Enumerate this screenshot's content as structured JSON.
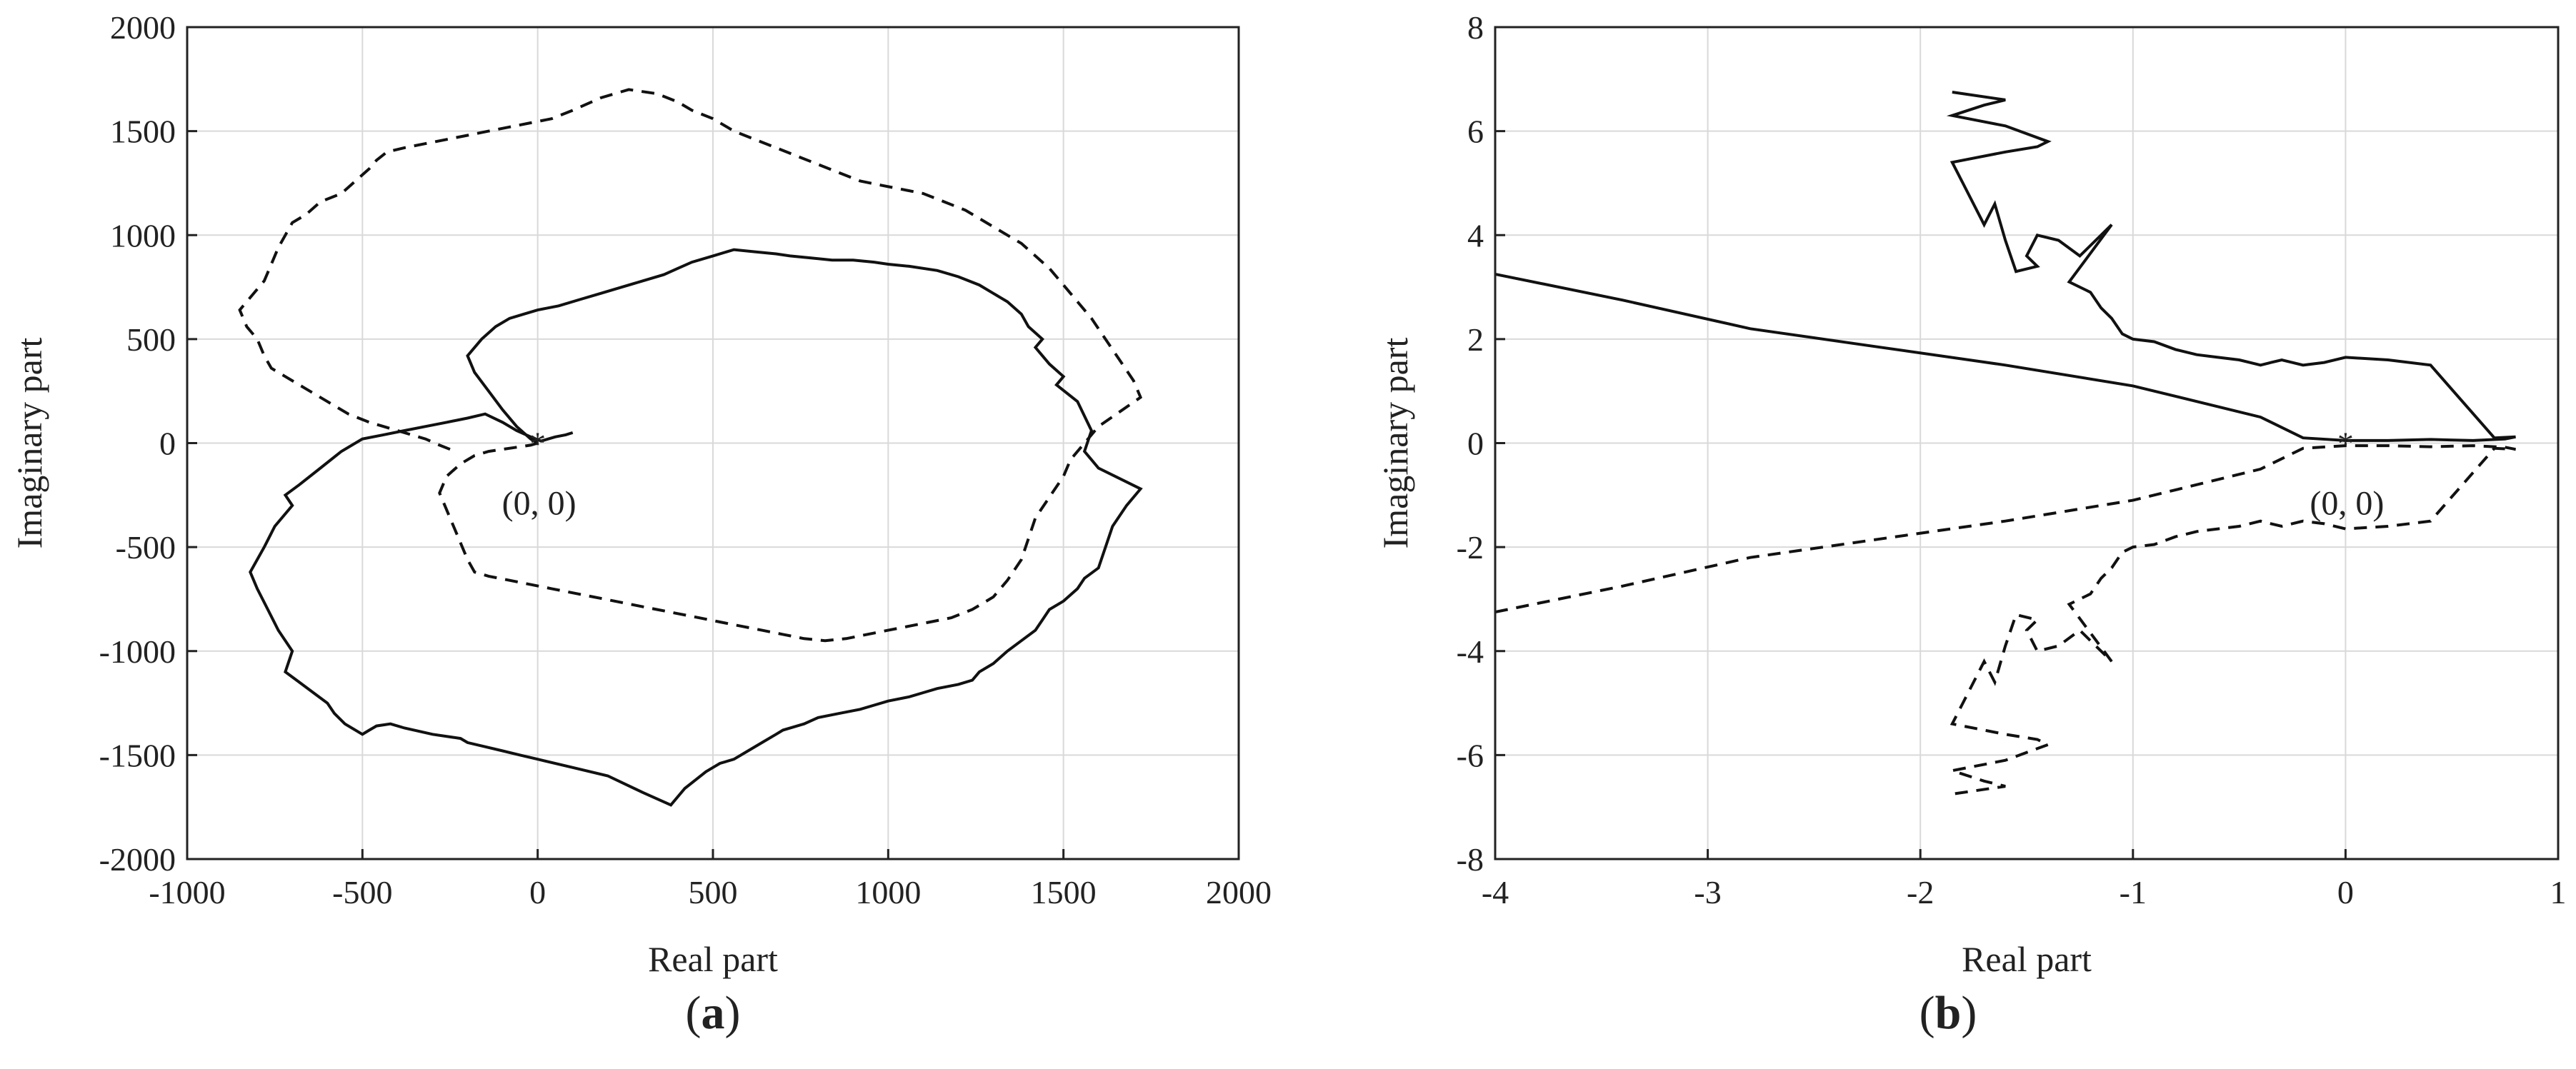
{
  "chart_data": [
    {
      "type": "line",
      "panel_label": "a",
      "xlabel": "Real part",
      "ylabel": "Imaginary part",
      "xlim": [
        -1000,
        2000
      ],
      "ylim": [
        -2000,
        2000
      ],
      "xticks": [
        -1000,
        -500,
        0,
        500,
        1000,
        1500,
        2000
      ],
      "yticks": [
        -2000,
        -1500,
        -1000,
        -500,
        0,
        500,
        1000,
        1500,
        2000
      ],
      "grid": true,
      "annotation": {
        "text": "(0, 0)",
        "x": 0,
        "y": 0
      },
      "series": [
        {
          "style": "solid",
          "x": [
            100,
            80,
            50,
            30,
            10,
            -20,
            -60,
            -100,
            -150,
            -200,
            -260,
            -320,
            -380,
            -440,
            -500,
            -560,
            -620,
            -680,
            -720,
            -700,
            -750,
            -780,
            -820,
            -800,
            -770,
            -740,
            -700,
            -720,
            -680,
            -640,
            -600,
            -580,
            -550,
            -500,
            -480,
            -460,
            -420,
            -380,
            -300,
            -220,
            -200,
            -150,
            -100,
            -50,
            0,
            100,
            200,
            300,
            380,
            400,
            420,
            450,
            480,
            500,
            520,
            560,
            600,
            640,
            680,
            700,
            760,
            800,
            860,
            920,
            960,
            1000,
            1060,
            1100,
            1140,
            1200,
            1240,
            1260,
            1300,
            1340,
            1380,
            1420,
            1440,
            1460,
            1500,
            1540,
            1560,
            1600,
            1640,
            1680,
            1720,
            1600,
            1560,
            1580,
            1540,
            1480,
            1500,
            1460,
            1440,
            1420,
            1440,
            1400,
            1380,
            1340,
            1300,
            1260,
            1200,
            1140,
            1060,
            1000,
            960,
            900,
            840,
            780,
            720,
            680,
            620,
            560,
            500,
            440,
            400,
            360,
            300,
            240,
            180,
            120,
            60,
            0,
            -40,
            -80,
            -120,
            -160,
            -200,
            -180,
            -140,
            -100,
            -60,
            -20,
            0
          ],
          "y": [
            50,
            40,
            30,
            20,
            10,
            30,
            60,
            100,
            140,
            120,
            100,
            80,
            60,
            40,
            20,
            -40,
            -120,
            -200,
            -250,
            -300,
            -400,
            -500,
            -620,
            -700,
            -800,
            -900,
            -1000,
            -1100,
            -1150,
            -1200,
            -1250,
            -1300,
            -1350,
            -1400,
            -1380,
            -1360,
            -1350,
            -1370,
            -1400,
            -1420,
            -1440,
            -1460,
            -1480,
            -1500,
            -1520,
            -1560,
            -1600,
            -1680,
            -1740,
            -1700,
            -1660,
            -1620,
            -1580,
            -1560,
            -1540,
            -1520,
            -1480,
            -1440,
            -1400,
            -1380,
            -1350,
            -1320,
            -1300,
            -1280,
            -1260,
            -1240,
            -1220,
            -1200,
            -1180,
            -1160,
            -1140,
            -1100,
            -1060,
            -1000,
            -950,
            -900,
            -850,
            -800,
            -760,
            -700,
            -650,
            -600,
            -400,
            -300,
            -220,
            -120,
            -40,
            60,
            200,
            280,
            320,
            380,
            420,
            460,
            500,
            560,
            620,
            680,
            720,
            760,
            800,
            830,
            850,
            860,
            870,
            880,
            880,
            890,
            900,
            910,
            920,
            930,
            900,
            870,
            840,
            810,
            780,
            750,
            720,
            690,
            660,
            640,
            620,
            600,
            560,
            500,
            420,
            340,
            250,
            160,
            80,
            20,
            0
          ]
        },
        {
          "style": "dashed",
          "x": [
            -250,
            -280,
            -320,
            -360,
            -400,
            -440,
            -480,
            -540,
            -600,
            -660,
            -720,
            -760,
            -780,
            -800,
            -830,
            -850,
            -820,
            -780,
            -760,
            -740,
            -720,
            -700,
            -660,
            -620,
            -560,
            -520,
            -480,
            -460,
            -430,
            -380,
            -320,
            -260,
            -200,
            -140,
            -80,
            -20,
            40,
            100,
            180,
            260,
            340,
            400,
            440,
            500,
            560,
            620,
            680,
            740,
            800,
            860,
            920,
            980,
            1040,
            1100,
            1160,
            1220,
            1260,
            1300,
            1340,
            1380,
            1420,
            1460,
            1500,
            1540,
            1580,
            1620,
            1660,
            1700,
            1720,
            1660,
            1600,
            1560,
            1520,
            1500,
            1460,
            1420,
            1400,
            1380,
            1340,
            1300,
            1240,
            1180,
            1120,
            1060,
            1000,
            940,
            880,
            820,
            760,
            700,
            640,
            580,
            520,
            460,
            400,
            340,
            280,
            220,
            160,
            100,
            40,
            -20,
            -80,
            -140,
            -180,
            -200,
            -220,
            -240,
            -260,
            -280,
            -260,
            -220,
            -180,
            -140,
            -100,
            -60,
            -20,
            0
          ],
          "y": [
            -30,
            -10,
            20,
            40,
            60,
            80,
            100,
            140,
            200,
            260,
            320,
            360,
            420,
            500,
            560,
            640,
            700,
            780,
            860,
            940,
            1000,
            1060,
            1100,
            1160,
            1200,
            1260,
            1320,
            1360,
            1400,
            1420,
            1440,
            1460,
            1480,
            1500,
            1520,
            1540,
            1560,
            1600,
            1660,
            1700,
            1680,
            1640,
            1600,
            1560,
            1500,
            1460,
            1420,
            1380,
            1340,
            1300,
            1260,
            1240,
            1220,
            1200,
            1160,
            1120,
            1080,
            1040,
            1000,
            960,
            900,
            840,
            760,
            680,
            600,
            500,
            400,
            300,
            220,
            150,
            80,
            0,
            -80,
            -160,
            -260,
            -360,
            -460,
            -560,
            -660,
            -740,
            -800,
            -840,
            -860,
            -880,
            -900,
            -920,
            -940,
            -950,
            -940,
            -920,
            -900,
            -880,
            -860,
            -840,
            -820,
            -800,
            -780,
            -760,
            -740,
            -720,
            -700,
            -680,
            -660,
            -640,
            -620,
            -560,
            -480,
            -400,
            -320,
            -240,
            -160,
            -100,
            -60,
            -40,
            -30,
            -20,
            -10,
            0
          ]
        }
      ]
    },
    {
      "type": "line",
      "panel_label": "b",
      "xlabel": "Real part",
      "ylabel": "Imaginary part",
      "xlim": [
        -4,
        1
      ],
      "ylim": [
        -8,
        8
      ],
      "xticks": [
        -4,
        -3,
        -2,
        -1,
        0,
        1
      ],
      "yticks": [
        -8,
        -6,
        -4,
        -2,
        0,
        2,
        4,
        6,
        8
      ],
      "grid": true,
      "annotation": {
        "text": "(0, 0)",
        "x": 0,
        "y": 0
      },
      "series": [
        {
          "style": "solid",
          "x": [
            -4,
            -3.4,
            -2.8,
            -2.2,
            -1.6,
            -1.0,
            -0.4,
            -0.2,
            0.0,
            0.2,
            0.4,
            0.6,
            0.75,
            0.8,
            0.7,
            0.4,
            0.2,
            0.0,
            -0.1,
            -0.2,
            -0.3,
            -0.35,
            -0.4,
            -0.5,
            -0.6,
            -0.7,
            -0.8,
            -0.9,
            -1.0,
            -1.05,
            -1.1,
            -1.15,
            -1.2,
            -1.3,
            -1.1,
            -1.25,
            -1.35,
            -1.45,
            -1.5,
            -1.45,
            -1.55,
            -1.6,
            -1.65,
            -1.7,
            -1.8,
            -1.85,
            -1.6,
            -1.45,
            -1.4,
            -1.6,
            -1.85,
            -1.7,
            -1.6,
            -1.85
          ],
          "y": [
            3.25,
            2.75,
            2.2,
            1.85,
            1.5,
            1.1,
            0.5,
            0.1,
            0.05,
            0.05,
            0.07,
            0.05,
            0.08,
            0.12,
            0.1,
            1.5,
            1.6,
            1.65,
            1.55,
            1.5,
            1.6,
            1.55,
            1.5,
            1.6,
            1.65,
            1.7,
            1.8,
            1.95,
            2.0,
            2.1,
            2.4,
            2.6,
            2.9,
            3.1,
            4.2,
            3.6,
            3.9,
            4.0,
            3.6,
            3.4,
            3.3,
            3.9,
            4.6,
            4.2,
            5.0,
            5.4,
            5.6,
            5.7,
            5.8,
            6.1,
            6.3,
            6.5,
            6.6,
            6.75
          ]
        },
        {
          "style": "dashed",
          "x": [
            -4,
            -3.4,
            -2.8,
            -2.2,
            -1.6,
            -1.0,
            -0.4,
            -0.2,
            0.0,
            0.2,
            0.4,
            0.6,
            0.75,
            0.8,
            0.7,
            0.4,
            0.2,
            0.0,
            -0.1,
            -0.2,
            -0.3,
            -0.35,
            -0.4,
            -0.5,
            -0.6,
            -0.7,
            -0.8,
            -0.9,
            -1.0,
            -1.05,
            -1.1,
            -1.15,
            -1.2,
            -1.3,
            -1.1,
            -1.25,
            -1.35,
            -1.45,
            -1.5,
            -1.45,
            -1.55,
            -1.6,
            -1.65,
            -1.7,
            -1.8,
            -1.85,
            -1.6,
            -1.45,
            -1.4,
            -1.6,
            -1.85,
            -1.7,
            -1.6,
            -1.85
          ],
          "y": [
            -3.25,
            -2.75,
            -2.2,
            -1.85,
            -1.5,
            -1.1,
            -0.5,
            -0.1,
            -0.05,
            -0.05,
            -0.07,
            -0.05,
            -0.08,
            -0.12,
            -0.1,
            -1.5,
            -1.6,
            -1.65,
            -1.55,
            -1.5,
            -1.6,
            -1.55,
            -1.5,
            -1.6,
            -1.65,
            -1.7,
            -1.8,
            -1.95,
            -2.0,
            -2.1,
            -2.4,
            -2.6,
            -2.9,
            -3.1,
            -4.2,
            -3.6,
            -3.9,
            -4.0,
            -3.6,
            -3.4,
            -3.3,
            -3.9,
            -4.6,
            -4.2,
            -5.0,
            -5.4,
            -5.6,
            -5.7,
            -5.8,
            -6.1,
            -6.3,
            -6.5,
            -6.6,
            -6.75
          ]
        }
      ]
    }
  ]
}
